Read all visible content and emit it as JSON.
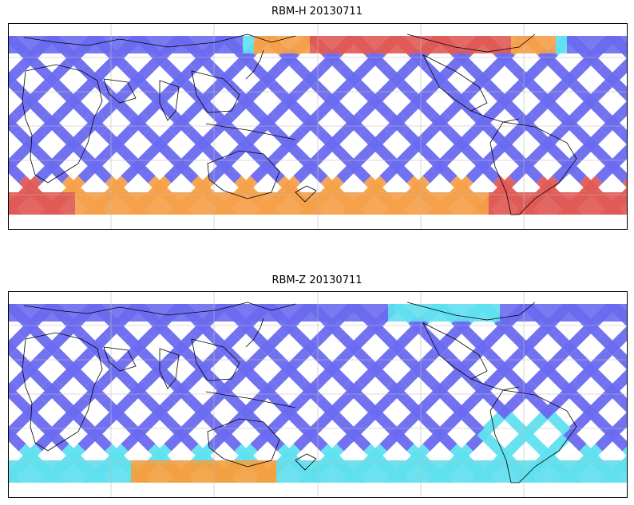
{
  "panels": [
    {
      "id": "top",
      "title": "RBM-H 20130711",
      "colors": {
        "low": "#6a6af0",
        "mid": "#5fe0ef",
        "high": "#e05a56"
      }
    },
    {
      "id": "bottom",
      "title": "RBM-Z 20130711",
      "colors": {
        "low": "#6a6af0",
        "mid": "#5fe0ef",
        "high": "#f2a040"
      }
    }
  ]
}
